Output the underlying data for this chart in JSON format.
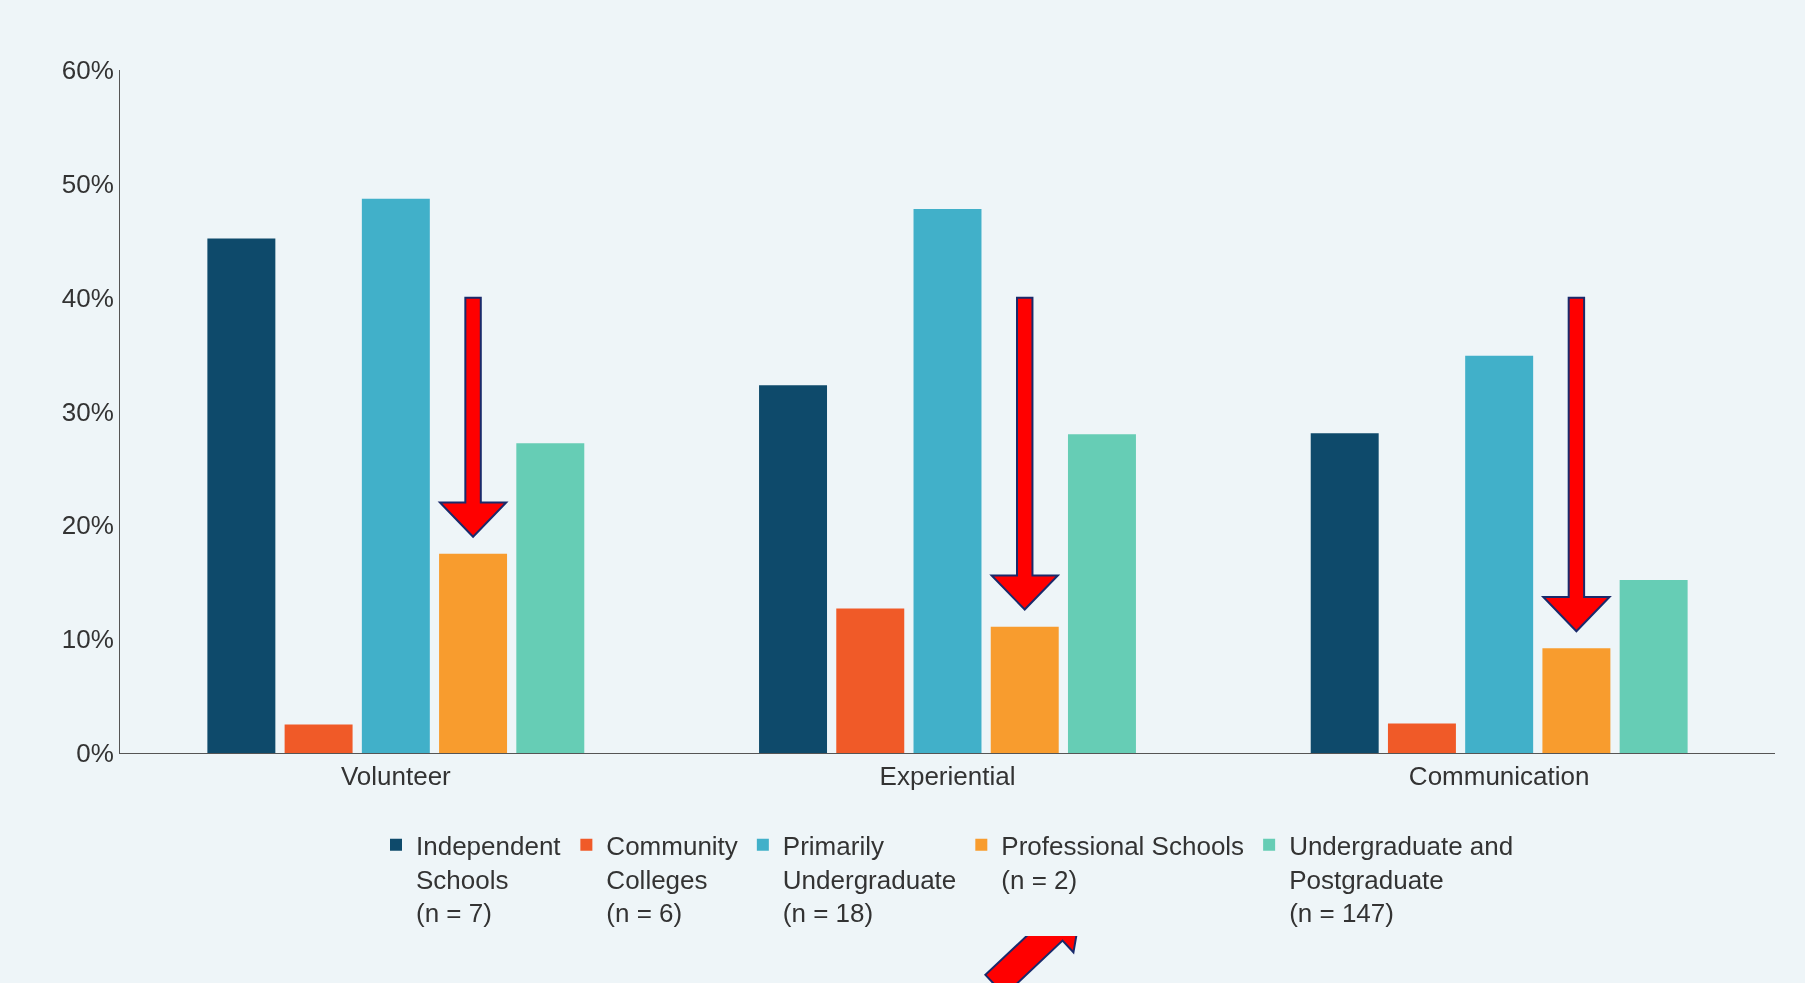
{
  "chart_data": {
    "type": "bar",
    "categories": [
      "Volunteer",
      "Experiential",
      "Communication"
    ],
    "series": [
      {
        "name": "Independent\nSchools\n(n = 7)",
        "color": "#0e4a6b",
        "values": [
          45.2,
          32.3,
          28.1
        ]
      },
      {
        "name": "Community\nColleges\n(n = 6)",
        "color": "#f05a28",
        "values": [
          2.5,
          12.7,
          2.6
        ]
      },
      {
        "name": "Primarily\nUndergraduate\n(n = 18)",
        "color": "#41b0c9",
        "values": [
          48.7,
          47.8,
          34.9
        ]
      },
      {
        "name": "Professional Schools\n(n = 2)",
        "color": "#f89c2e",
        "values": [
          17.5,
          11.1,
          9.2
        ]
      },
      {
        "name": "Undergraduate and\nPostgraduate\n(n = 147)",
        "color": "#66cdb5",
        "values": [
          27.2,
          28.0,
          15.2
        ]
      }
    ],
    "ylim": [
      0,
      60
    ],
    "yticks": [
      {
        "value": 0,
        "label": "0%"
      },
      {
        "value": 10,
        "label": "10%"
      },
      {
        "value": 20,
        "label": "20%"
      },
      {
        "value": 30,
        "label": "30%"
      },
      {
        "value": 40,
        "label": "40%"
      },
      {
        "value": 50,
        "label": "50%"
      },
      {
        "value": 60,
        "label": "60%"
      }
    ],
    "grid": false,
    "legend": "bottom"
  }
}
